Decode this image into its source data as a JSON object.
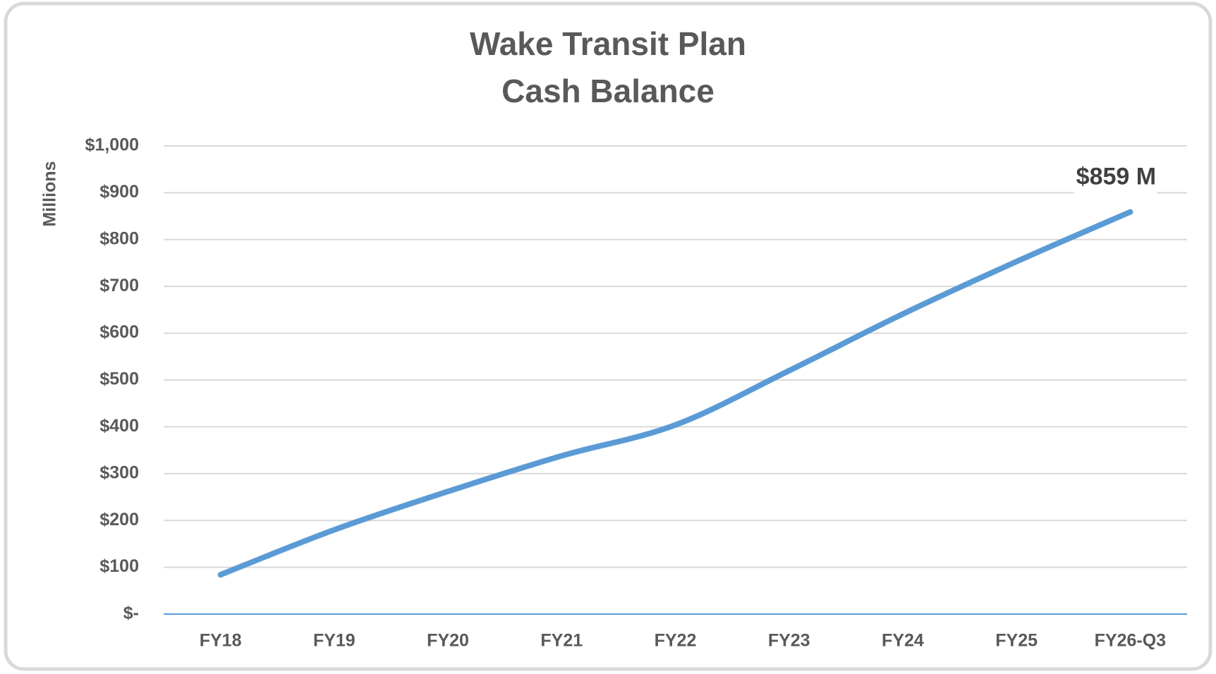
{
  "chart_data": {
    "type": "line",
    "title": [
      "Wake Transit Plan",
      "Cash Balance"
    ],
    "y_label": "Millions",
    "categories": [
      "FY18",
      "FY19",
      "FY20",
      "FY21",
      "FY22",
      "FY23",
      "FY24",
      "FY25",
      "FY26-Q3"
    ],
    "series": [
      {
        "name": "Cash Balance",
        "color": "#5b9bd5",
        "values": [
          84,
          180,
          262,
          338,
          404,
          520,
          641,
          753,
          859
        ],
        "value_labels": [
          null,
          null,
          null,
          null,
          null,
          null,
          null,
          null,
          "$859 M"
        ]
      }
    ],
    "ylim": [
      0,
      1000
    ],
    "yticks": [
      {
        "value": 0,
        "label": "$-"
      },
      {
        "value": 100,
        "label": "$100"
      },
      {
        "value": 200,
        "label": "$200"
      },
      {
        "value": 300,
        "label": "$300"
      },
      {
        "value": 400,
        "label": "$400"
      },
      {
        "value": 500,
        "label": "$500"
      },
      {
        "value": 600,
        "label": "$600"
      },
      {
        "value": 700,
        "label": "$700"
      },
      {
        "value": 800,
        "label": "$800"
      },
      {
        "value": 900,
        "label": "$900"
      },
      {
        "value": 1000,
        "label": "$1,000"
      }
    ],
    "grid": true
  }
}
